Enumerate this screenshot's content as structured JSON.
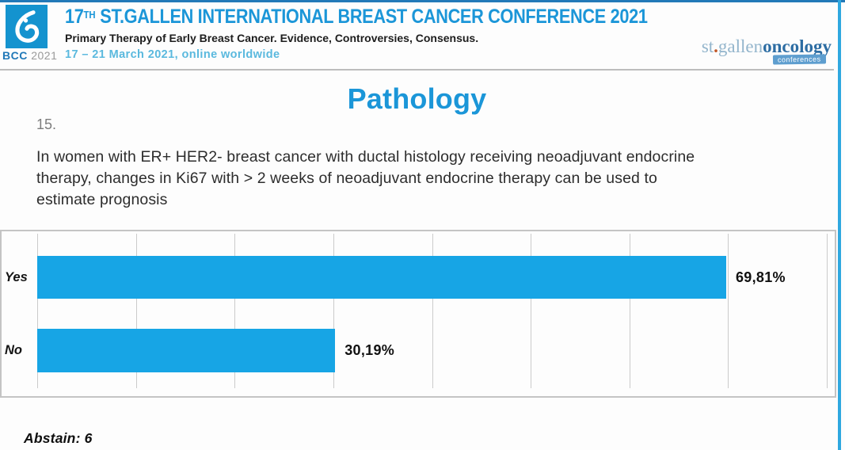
{
  "header": {
    "logo": {
      "bcc": "BCC",
      "year": "2021"
    },
    "title_number": "17",
    "title_superscript": "TH",
    "title_rest": " ST.GALLEN INTERNATIONAL BREAST CANCER CONFERENCE 2021",
    "subtitle": "Primary Therapy of Early Breast Cancer. Evidence, Controversies, Consensus.",
    "dates": "17 – 21 March 2021, online worldwide",
    "brand": {
      "st": "st",
      "dot": ".",
      "gallen": "gallen",
      "oncology": "oncology",
      "badge": "conferences"
    }
  },
  "slide": {
    "section_title": "Pathology",
    "question_number": "15.",
    "question_text": "In women with ER+ HER2- breast cancer with ductal histology receiving neoadjuvant endocrine therapy, changes in Ki67 with > 2 weeks of neoadjuvant endocrine therapy can be used to estimate prognosis",
    "question_lines": [
      "In women with ER+ HER2- breast cancer with ductal histology receiving neoadjuvant endocrine",
      "therapy, changes in Ki67 with > 2 weeks of neoadjuvant endocrine therapy can be used to",
      "estimate prognosis"
    ],
    "abstain_label": "Abstain: 6"
  },
  "chart_data": {
    "type": "bar",
    "orientation": "horizontal",
    "title": "",
    "categories": [
      "Yes",
      "No"
    ],
    "values": [
      69.81,
      30.19
    ],
    "value_labels": [
      "69,81%",
      "30,19%"
    ],
    "xlim": [
      0,
      80
    ],
    "gridline_interval": 10,
    "grid": true,
    "legend": false,
    "bar_color": "#17a5e5"
  },
  "colors": {
    "accent_blue": "#1b96d8",
    "bar_blue": "#17a5e5",
    "date_blue": "#5ab9de",
    "bcc_blue": "#1f78b8",
    "logo_blue": "#1493cf",
    "border_gray": "#c4c4c4",
    "gridline": "#cbcbcb",
    "brand_light": "#93b5cc",
    "brand_dark": "#2d6da3",
    "badge_bg": "#5e9ecf",
    "orange_dot": "#c05524",
    "top_line": "#2279b8",
    "right_line": "#2fa8e0"
  }
}
